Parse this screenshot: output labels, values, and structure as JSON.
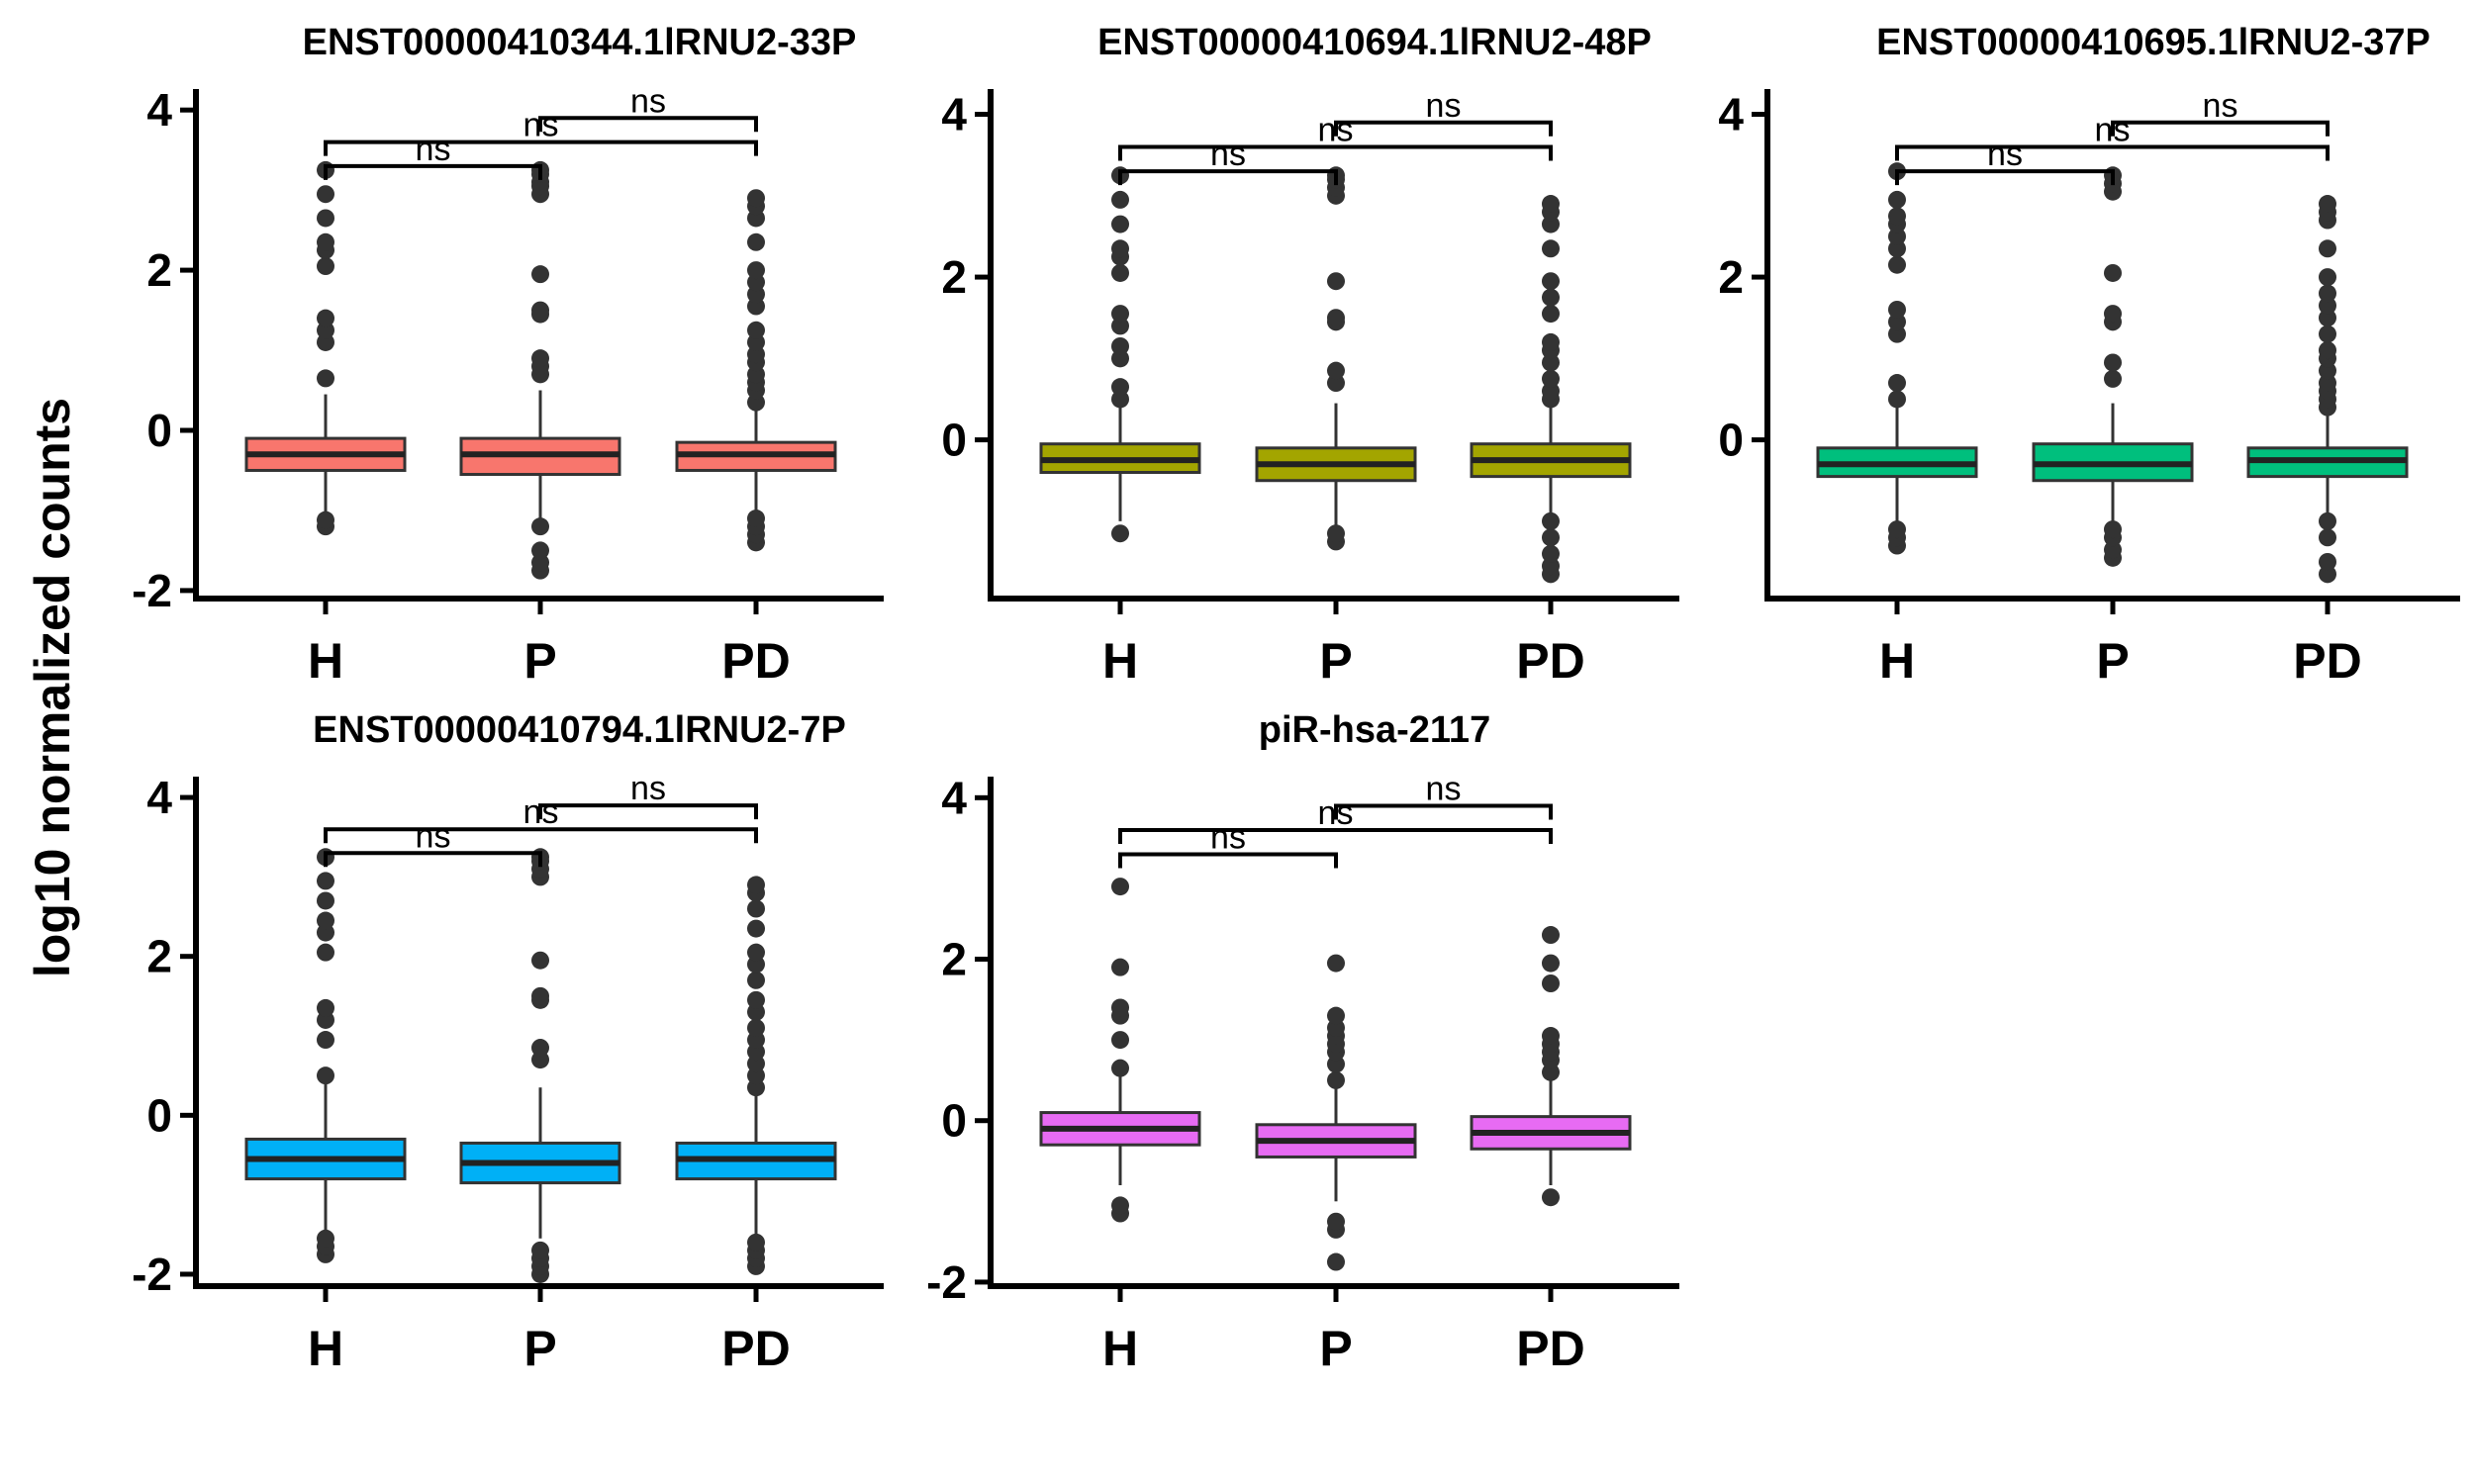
{
  "ylabel": "log10 normalized counts",
  "chart_data": [
    {
      "type": "box",
      "title": "ENST00000410344.1lRNU2-33P",
      "color": "#F8766D",
      "ylim": [
        -2.1,
        4.2
      ],
      "yticks": [
        -2,
        0,
        2,
        4
      ],
      "ytick_labels": [
        "-2",
        "0",
        "2",
        "4"
      ],
      "categories": [
        "H",
        "P",
        "PD"
      ],
      "boxes": [
        {
          "category": "H",
          "q1": -0.5,
          "median": -0.3,
          "q3": -0.1,
          "whisker_low": -1.05,
          "whisker_high": 0.45,
          "outliers": [
            -1.2,
            -1.12,
            0.65,
            1.1,
            1.25,
            1.4,
            2.05,
            2.25,
            2.35,
            2.65,
            2.95,
            3.25
          ]
        },
        {
          "category": "P",
          "q1": -0.55,
          "median": -0.3,
          "q3": -0.1,
          "whisker_low": -1.1,
          "whisker_high": 0.5,
          "outliers": [
            -1.75,
            -1.65,
            -1.5,
            -1.2,
            0.7,
            0.8,
            0.9,
            1.45,
            1.5,
            1.95,
            2.95,
            3.05,
            3.1,
            3.2,
            3.25
          ]
        },
        {
          "category": "PD",
          "q1": -0.5,
          "median": -0.3,
          "q3": -0.15,
          "whisker_low": -1.0,
          "whisker_high": 0.35,
          "outliers": [
            -1.4,
            -1.3,
            -1.2,
            -1.1,
            0.35,
            0.5,
            0.6,
            0.7,
            0.85,
            0.95,
            1.1,
            1.25,
            1.55,
            1.7,
            1.85,
            2.0,
            2.35,
            2.65,
            2.8,
            2.9
          ]
        }
      ],
      "comparisons": [
        {
          "from": "H",
          "to": "P",
          "label": "ns"
        },
        {
          "from": "H",
          "to": "PD",
          "label": "ns"
        },
        {
          "from": "P",
          "to": "PD",
          "label": "ns"
        }
      ]
    },
    {
      "type": "box",
      "title": "ENST00000410694.1lRNU2-48P",
      "color": "#A3A500",
      "ylim": [
        -1.95,
        4.25
      ],
      "yticks": [
        0,
        2,
        4
      ],
      "ytick_labels": [
        "0",
        "2",
        "4"
      ],
      "categories": [
        "H",
        "P",
        "PD"
      ],
      "boxes": [
        {
          "category": "H",
          "q1": -0.4,
          "median": -0.25,
          "q3": -0.05,
          "whisker_low": -1.0,
          "whisker_high": 0.5,
          "outliers": [
            -1.15,
            0.5,
            0.65,
            1.0,
            1.15,
            1.4,
            1.55,
            2.05,
            2.25,
            2.35,
            2.65,
            2.95,
            3.25
          ]
        },
        {
          "category": "P",
          "q1": -0.5,
          "median": -0.3,
          "q3": -0.1,
          "whisker_low": -1.1,
          "whisker_high": 0.45,
          "outliers": [
            -1.25,
            -1.15,
            0.7,
            0.85,
            1.45,
            1.5,
            1.95,
            3.0,
            3.1,
            3.2,
            3.25
          ]
        },
        {
          "category": "PD",
          "q1": -0.45,
          "median": -0.25,
          "q3": -0.05,
          "whisker_low": -0.95,
          "whisker_high": 0.4,
          "outliers": [
            -1.65,
            -1.55,
            -1.4,
            -1.2,
            -1.0,
            0.5,
            0.6,
            0.75,
            0.95,
            1.1,
            1.2,
            1.55,
            1.75,
            1.95,
            2.35,
            2.65,
            2.8,
            2.9
          ]
        }
      ],
      "comparisons": [
        {
          "from": "H",
          "to": "P",
          "label": "ns"
        },
        {
          "from": "H",
          "to": "PD",
          "label": "ns"
        },
        {
          "from": "P",
          "to": "PD",
          "label": "ns"
        }
      ]
    },
    {
      "type": "box",
      "title": "ENST00000410695.1lRNU2-37P",
      "color": "#00BF7D",
      "ylim": [
        -1.95,
        4.25
      ],
      "yticks": [
        0,
        2,
        4
      ],
      "ytick_labels": [
        "0",
        "2",
        "4"
      ],
      "categories": [
        "H",
        "P",
        "PD"
      ],
      "boxes": [
        {
          "category": "H",
          "q1": -0.45,
          "median": -0.3,
          "q3": -0.1,
          "whisker_low": -1.05,
          "whisker_high": 0.5,
          "outliers": [
            -1.3,
            -1.2,
            -1.1,
            0.5,
            0.7,
            1.3,
            1.45,
            1.6,
            2.15,
            2.35,
            2.5,
            2.65,
            2.75,
            2.95,
            3.3
          ]
        },
        {
          "category": "P",
          "q1": -0.5,
          "median": -0.3,
          "q3": -0.05,
          "whisker_low": -1.1,
          "whisker_high": 0.45,
          "outliers": [
            -1.45,
            -1.35,
            -1.2,
            -1.1,
            0.75,
            0.95,
            1.45,
            1.55,
            2.05,
            3.05,
            3.15,
            3.25
          ]
        },
        {
          "category": "PD",
          "q1": -0.45,
          "median": -0.25,
          "q3": -0.1,
          "whisker_low": -0.95,
          "whisker_high": 0.4,
          "outliers": [
            -1.65,
            -1.5,
            -1.2,
            -1.0,
            0.4,
            0.5,
            0.6,
            0.7,
            0.85,
            1.0,
            1.1,
            1.3,
            1.5,
            1.65,
            1.8,
            2.0,
            2.35,
            2.7,
            2.8,
            2.9
          ]
        }
      ],
      "comparisons": [
        {
          "from": "H",
          "to": "P",
          "label": "ns"
        },
        {
          "from": "H",
          "to": "PD",
          "label": "ns"
        },
        {
          "from": "P",
          "to": "PD",
          "label": "ns"
        }
      ]
    },
    {
      "type": "box",
      "title": "ENST00000410794.1lRNU2-7P",
      "color": "#00B0F6",
      "ylim": [
        -2.15,
        4.2
      ],
      "yticks": [
        -2,
        0,
        2,
        4
      ],
      "ytick_labels": [
        "-2",
        "0",
        "2",
        "4"
      ],
      "categories": [
        "H",
        "P",
        "PD"
      ],
      "boxes": [
        {
          "category": "H",
          "q1": -0.8,
          "median": -0.55,
          "q3": -0.3,
          "whisker_low": -1.5,
          "whisker_high": 0.45,
          "outliers": [
            -1.75,
            -1.65,
            -1.55,
            0.5,
            0.95,
            1.2,
            1.35,
            2.05,
            2.3,
            2.45,
            2.7,
            2.95,
            3.25
          ]
        },
        {
          "category": "P",
          "q1": -0.85,
          "median": -0.6,
          "q3": -0.35,
          "whisker_low": -1.55,
          "whisker_high": 0.35,
          "outliers": [
            -2.0,
            -1.9,
            -1.8,
            -1.7,
            0.7,
            0.85,
            1.45,
            1.5,
            1.95,
            3.0,
            3.1,
            3.2,
            3.25
          ]
        },
        {
          "category": "PD",
          "q1": -0.8,
          "median": -0.55,
          "q3": -0.35,
          "whisker_low": -1.5,
          "whisker_high": 0.3,
          "outliers": [
            -1.9,
            -1.8,
            -1.7,
            -1.6,
            0.35,
            0.5,
            0.65,
            0.8,
            0.95,
            1.1,
            1.3,
            1.45,
            1.7,
            1.9,
            2.05,
            2.35,
            2.6,
            2.8,
            2.9
          ]
        }
      ],
      "comparisons": [
        {
          "from": "H",
          "to": "P",
          "label": "ns"
        },
        {
          "from": "H",
          "to": "PD",
          "label": "ns"
        },
        {
          "from": "P",
          "to": "PD",
          "label": "ns"
        }
      ]
    },
    {
      "type": "box",
      "title": "piR-hsa-2117",
      "color": "#E76BF3",
      "ylim": [
        -2.05,
        4.2
      ],
      "yticks": [
        -2,
        0,
        2,
        4
      ],
      "ytick_labels": [
        "-2",
        "0",
        "2",
        "4"
      ],
      "categories": [
        "H",
        "P",
        "PD"
      ],
      "boxes": [
        {
          "category": "H",
          "q1": -0.3,
          "median": -0.1,
          "q3": 0.1,
          "whisker_low": -0.8,
          "whisker_high": 0.7,
          "outliers": [
            -1.15,
            -1.05,
            0.65,
            1.0,
            1.3,
            1.4,
            1.9,
            2.9
          ]
        },
        {
          "category": "P",
          "q1": -0.45,
          "median": -0.25,
          "q3": -0.05,
          "whisker_low": -1.0,
          "whisker_high": 0.45,
          "outliers": [
            -1.75,
            -1.35,
            -1.25,
            0.5,
            0.7,
            0.85,
            0.95,
            1.05,
            1.15,
            1.3,
            1.95
          ]
        },
        {
          "category": "PD",
          "q1": -0.35,
          "median": -0.15,
          "q3": 0.05,
          "whisker_low": -0.8,
          "whisker_high": 0.55,
          "outliers": [
            -0.95,
            0.6,
            0.75,
            0.85,
            0.95,
            1.05,
            1.7,
            1.95,
            2.3
          ]
        }
      ],
      "comparisons": [
        {
          "from": "H",
          "to": "P",
          "label": "ns"
        },
        {
          "from": "H",
          "to": "PD",
          "label": "ns"
        },
        {
          "from": "P",
          "to": "PD",
          "label": "ns"
        }
      ]
    }
  ]
}
